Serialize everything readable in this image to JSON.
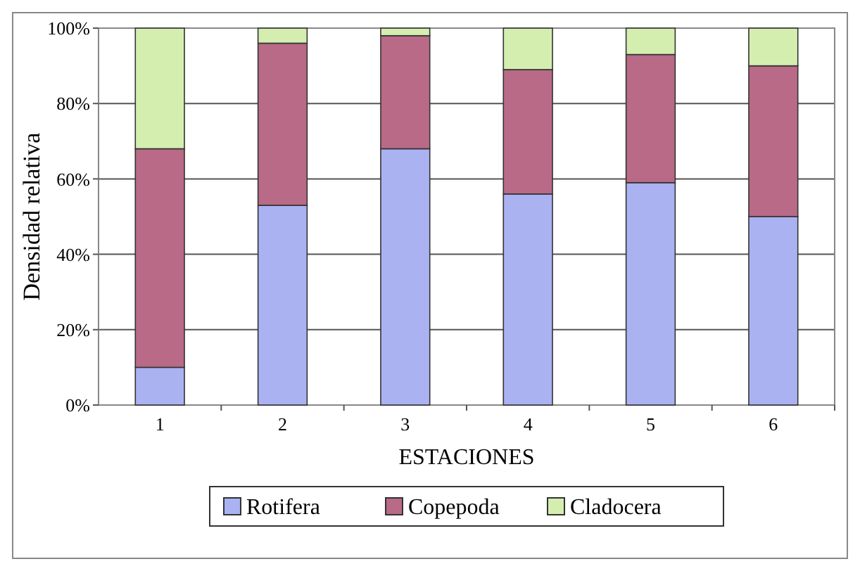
{
  "chart_data": {
    "type": "bar",
    "stacked": true,
    "xlabel": "ESTACIONES",
    "ylabel": "Densidad relativa",
    "categories": [
      "1",
      "2",
      "3",
      "4",
      "5",
      "6"
    ],
    "series": [
      {
        "name": "Rotifera",
        "color": "#aab2f2",
        "values": [
          10,
          53,
          68,
          56,
          59,
          50
        ]
      },
      {
        "name": "Copepoda",
        "color": "#b86a86",
        "values": [
          58,
          43,
          30,
          33,
          34,
          40
        ]
      },
      {
        "name": "Cladocera",
        "color": "#d4eeb0",
        "values": [
          32,
          4,
          2,
          11,
          7,
          10
        ]
      }
    ],
    "ylim": [
      0,
      100
    ],
    "yticks": [
      {
        "value": 0,
        "label": "0%"
      },
      {
        "value": 20,
        "label": "20%"
      },
      {
        "value": 40,
        "label": "40%"
      },
      {
        "value": 60,
        "label": "60%"
      },
      {
        "value": 80,
        "label": "80%"
      },
      {
        "value": 100,
        "label": "100%"
      }
    ],
    "grid": "y",
    "legend": "bottom"
  }
}
